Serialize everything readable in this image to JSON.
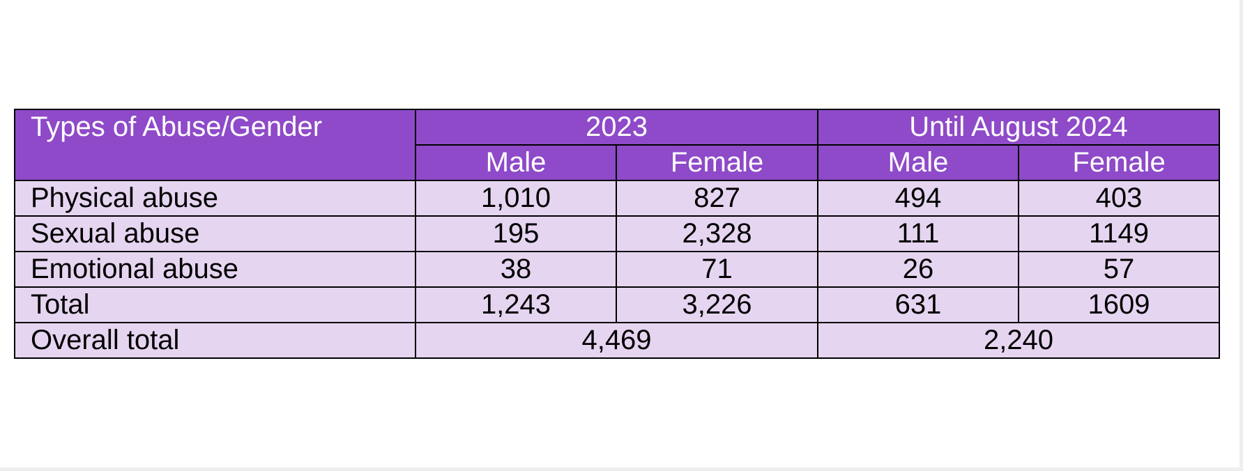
{
  "table": {
    "header": {
      "corner": "Types of Abuse/Gender",
      "groups": [
        "2023",
        "Until August 2024"
      ],
      "subheaders": [
        "Male",
        "Female",
        "Male",
        "Female"
      ]
    },
    "rows": [
      [
        "Physical abuse",
        "1,010",
        "827",
        "494",
        "403"
      ],
      [
        "Sexual abuse",
        "195",
        "2,328",
        "111",
        "1149"
      ],
      [
        "Emotional abuse",
        "38",
        "71",
        "26",
        "57"
      ],
      [
        "Total",
        "1,243",
        "3,226",
        "631",
        "1609"
      ]
    ],
    "overall": {
      "label": "Overall total",
      "values": [
        "4,469",
        "2,240"
      ]
    }
  }
}
